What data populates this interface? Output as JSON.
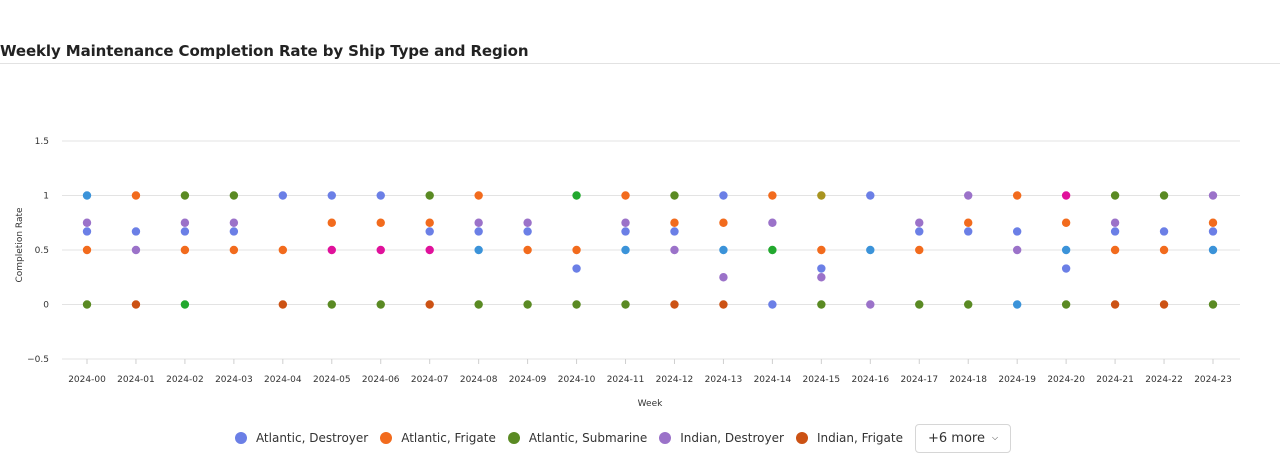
{
  "chart_data": {
    "type": "scatter",
    "title": "Weekly Maintenance Completion Rate by Ship Type and Region",
    "xlabel": "Week",
    "ylabel": "Completion Rate",
    "ylim": [
      -0.5,
      1.5
    ],
    "yticks": [
      {
        "value": 1.5,
        "label": "1.5"
      },
      {
        "value": 1,
        "label": "1"
      },
      {
        "value": 0.5,
        "label": "0.5"
      },
      {
        "value": 0,
        "label": "0"
      },
      {
        "value": -0.5,
        "label": "−0.5"
      }
    ],
    "grid": true,
    "legend_position": "bottom",
    "categories": [
      "2024-00",
      "2024-01",
      "2024-02",
      "2024-03",
      "2024-04",
      "2024-05",
      "2024-06",
      "2024-07",
      "2024-08",
      "2024-09",
      "2024-10",
      "2024-11",
      "2024-12",
      "2024-13",
      "2024-14",
      "2024-15",
      "2024-16",
      "2024-17",
      "2024-18",
      "2024-19",
      "2024-20",
      "2024-21",
      "2024-22",
      "2024-23"
    ],
    "series": [
      {
        "name": "Atlantic, Destroyer",
        "color": "#6b7fe6",
        "values": [
          0.67,
          0.67,
          0.67,
          0.67,
          1,
          1,
          1,
          0.67,
          0.67,
          0.67,
          0.33,
          0.67,
          0.67,
          1,
          0,
          0.33,
          1,
          0.67,
          0.67,
          0.67,
          0.33,
          0.67,
          0.67,
          0.67
        ]
      },
      {
        "name": "Atlantic, Frigate",
        "color": "#f26b1d",
        "values": [
          0.5,
          1,
          0.5,
          0.5,
          0.5,
          0.75,
          0.75,
          0.75,
          1,
          0.5,
          0.5,
          1,
          0.75,
          0.75,
          1,
          0.5,
          null,
          0.5,
          0.75,
          1,
          0.75,
          0.5,
          0.5,
          0.75
        ]
      },
      {
        "name": "Atlantic, Submarine",
        "color": "#5a8a23",
        "values": [
          0,
          null,
          1,
          1,
          null,
          0,
          0,
          1,
          0,
          0,
          0,
          0,
          1,
          null,
          null,
          0,
          null,
          0,
          0,
          null,
          0,
          1,
          1,
          0
        ]
      },
      {
        "name": "Indian, Destroyer",
        "color": "#9b72c9",
        "values": [
          0.75,
          0.5,
          0.75,
          0.75,
          null,
          null,
          null,
          null,
          0.75,
          0.75,
          null,
          0.75,
          0.5,
          0.25,
          0.75,
          0.25,
          0,
          0.75,
          1,
          0.5,
          null,
          0.75,
          null,
          1
        ]
      },
      {
        "name": "Indian, Frigate",
        "color": "#cc5214",
        "values": [
          null,
          0,
          null,
          null,
          0,
          null,
          null,
          0,
          null,
          null,
          null,
          null,
          0,
          0,
          null,
          null,
          null,
          null,
          null,
          null,
          null,
          0,
          0,
          null
        ]
      },
      {
        "name": "",
        "color": "#3b93d9",
        "values": [
          1,
          null,
          null,
          null,
          null,
          null,
          null,
          null,
          0.5,
          null,
          null,
          0.5,
          null,
          0.5,
          null,
          null,
          0.5,
          null,
          null,
          0,
          0.5,
          null,
          null,
          0.5
        ]
      },
      {
        "name": "",
        "color": "#e0119b",
        "values": [
          null,
          null,
          null,
          null,
          null,
          0.5,
          0.5,
          0.5,
          null,
          null,
          null,
          null,
          null,
          null,
          null,
          null,
          null,
          null,
          null,
          null,
          1,
          null,
          null,
          null
        ]
      },
      {
        "name": "",
        "color": "#22a82e",
        "values": [
          null,
          null,
          0,
          null,
          null,
          null,
          null,
          null,
          null,
          null,
          1,
          null,
          null,
          null,
          0.5,
          null,
          null,
          null,
          null,
          null,
          null,
          null,
          null,
          null
        ]
      },
      {
        "name": "",
        "color": "#a89420",
        "values": [
          null,
          null,
          null,
          null,
          null,
          null,
          null,
          null,
          null,
          null,
          null,
          null,
          null,
          null,
          null,
          1,
          null,
          null,
          null,
          null,
          null,
          null,
          null,
          null
        ]
      }
    ]
  },
  "legend": {
    "items": [
      {
        "label": "Atlantic, Destroyer",
        "color": "#6b7fe6"
      },
      {
        "label": "Atlantic, Frigate",
        "color": "#f26b1d"
      },
      {
        "label": "Atlantic, Submarine",
        "color": "#5a8a23"
      },
      {
        "label": "Indian, Destroyer",
        "color": "#9b72c9"
      },
      {
        "label": "Indian, Frigate",
        "color": "#cc5214"
      }
    ],
    "more_label": "+6 more",
    "more_icon": "chevron-down-icon"
  }
}
